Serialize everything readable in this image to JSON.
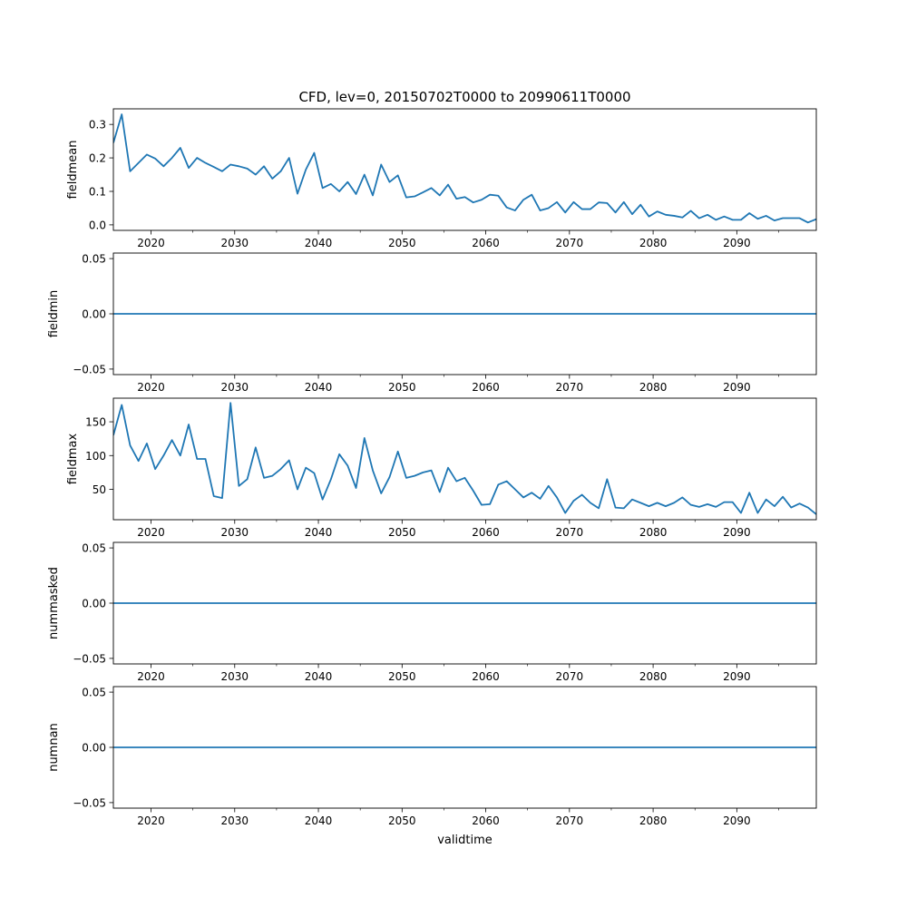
{
  "figure": {
    "title": "CFD, lev=0, 20150702T0000 to 20990611T0000",
    "xlabel": "validtime",
    "line_color": "#1f77b4"
  },
  "chart_data": [
    {
      "type": "line",
      "name": "fieldmean",
      "ylabel": "fieldmean",
      "xlim": [
        2015.5,
        2099.5
      ],
      "ylim": [
        -0.0165,
        0.3465
      ],
      "xticks": [
        2020,
        2030,
        2040,
        2050,
        2060,
        2070,
        2080,
        2090
      ],
      "xtick_labels": [
        "2020",
        "2030",
        "2040",
        "2050",
        "2060",
        "2070",
        "2080",
        "2090"
      ],
      "yticks": [
        0.0,
        0.1,
        0.2,
        0.3
      ],
      "ytick_labels": [
        "0.0",
        "0.1",
        "0.2",
        "0.3"
      ],
      "x": [
        2015.5,
        2016.5,
        2017.5,
        2018.5,
        2019.5,
        2020.5,
        2021.5,
        2022.5,
        2023.5,
        2024.5,
        2025.5,
        2026.5,
        2027.5,
        2028.5,
        2029.5,
        2030.5,
        2031.5,
        2032.5,
        2033.5,
        2034.5,
        2035.5,
        2036.5,
        2037.5,
        2038.5,
        2039.5,
        2040.5,
        2041.5,
        2042.5,
        2043.5,
        2044.5,
        2045.5,
        2046.5,
        2047.5,
        2048.5,
        2049.5,
        2050.5,
        2051.5,
        2052.5,
        2053.5,
        2054.5,
        2055.5,
        2056.5,
        2057.5,
        2058.5,
        2059.5,
        2060.5,
        2061.5,
        2062.5,
        2063.5,
        2064.5,
        2065.5,
        2066.5,
        2067.5,
        2068.5,
        2069.5,
        2070.5,
        2071.5,
        2072.5,
        2073.5,
        2074.5,
        2075.5,
        2076.5,
        2077.5,
        2078.5,
        2079.5,
        2080.5,
        2081.5,
        2082.5,
        2083.5,
        2084.5,
        2085.5,
        2086.5,
        2087.5,
        2088.5,
        2089.5,
        2090.5,
        2091.5,
        2092.5,
        2093.5,
        2094.5,
        2095.5,
        2096.5,
        2097.5,
        2098.5,
        2099.5
      ],
      "values": [
        0.245,
        0.33,
        0.16,
        0.185,
        0.21,
        0.198,
        0.175,
        0.2,
        0.23,
        0.17,
        0.2,
        0.185,
        0.173,
        0.16,
        0.18,
        0.175,
        0.168,
        0.15,
        0.175,
        0.138,
        0.16,
        0.2,
        0.093,
        0.165,
        0.215,
        0.11,
        0.122,
        0.1,
        0.128,
        0.092,
        0.15,
        0.088,
        0.18,
        0.128,
        0.148,
        0.082,
        0.085,
        0.097,
        0.11,
        0.088,
        0.12,
        0.078,
        0.083,
        0.067,
        0.075,
        0.09,
        0.087,
        0.052,
        0.043,
        0.075,
        0.09,
        0.043,
        0.05,
        0.068,
        0.037,
        0.068,
        0.047,
        0.047,
        0.067,
        0.065,
        0.037,
        0.068,
        0.032,
        0.06,
        0.025,
        0.04,
        0.03,
        0.027,
        0.022,
        0.042,
        0.02,
        0.03,
        0.015,
        0.025,
        0.015,
        0.015,
        0.035,
        0.018,
        0.027,
        0.013,
        0.02,
        0.02,
        0.02,
        0.007,
        0.017
      ]
    },
    {
      "type": "line",
      "name": "fieldmin",
      "ylabel": "fieldmin",
      "xlim": [
        2015.5,
        2099.5
      ],
      "ylim": [
        -0.055,
        0.055
      ],
      "xticks": [
        2020,
        2030,
        2040,
        2050,
        2060,
        2070,
        2080,
        2090
      ],
      "xtick_labels": [
        "2020",
        "2030",
        "2040",
        "2050",
        "2060",
        "2070",
        "2080",
        "2090"
      ],
      "yticks": [
        -0.05,
        0.0,
        0.05
      ],
      "ytick_labels": [
        "−0.05",
        "0.00",
        "0.05"
      ],
      "x": [
        2015.5,
        2099.5
      ],
      "values": [
        0,
        0
      ]
    },
    {
      "type": "line",
      "name": "fieldmax",
      "ylabel": "fieldmax",
      "xlim": [
        2015.5,
        2099.5
      ],
      "ylim": [
        5,
        185
      ],
      "xticks": [
        2020,
        2030,
        2040,
        2050,
        2060,
        2070,
        2080,
        2090
      ],
      "xtick_labels": [
        "2020",
        "2030",
        "2040",
        "2050",
        "2060",
        "2070",
        "2080",
        "2090"
      ],
      "yticks": [
        50,
        100,
        150
      ],
      "ytick_labels": [
        "50",
        "100",
        "150"
      ],
      "x": [
        2015.5,
        2016.5,
        2017.5,
        2018.5,
        2019.5,
        2020.5,
        2021.5,
        2022.5,
        2023.5,
        2024.5,
        2025.5,
        2026.5,
        2027.5,
        2028.5,
        2029.5,
        2030.5,
        2031.5,
        2032.5,
        2033.5,
        2034.5,
        2035.5,
        2036.5,
        2037.5,
        2038.5,
        2039.5,
        2040.5,
        2041.5,
        2042.5,
        2043.5,
        2044.5,
        2045.5,
        2046.5,
        2047.5,
        2048.5,
        2049.5,
        2050.5,
        2051.5,
        2052.5,
        2053.5,
        2054.5,
        2055.5,
        2056.5,
        2057.5,
        2058.5,
        2059.5,
        2060.5,
        2061.5,
        2062.5,
        2063.5,
        2064.5,
        2065.5,
        2066.5,
        2067.5,
        2068.5,
        2069.5,
        2070.5,
        2071.5,
        2072.5,
        2073.5,
        2074.5,
        2075.5,
        2076.5,
        2077.5,
        2078.5,
        2079.5,
        2080.5,
        2081.5,
        2082.5,
        2083.5,
        2084.5,
        2085.5,
        2086.5,
        2087.5,
        2088.5,
        2089.5,
        2090.5,
        2091.5,
        2092.5,
        2093.5,
        2094.5,
        2095.5,
        2096.5,
        2097.5,
        2098.5,
        2099.5
      ],
      "values": [
        130,
        175,
        115,
        92,
        118,
        80,
        100,
        123,
        100,
        146,
        95,
        95,
        40,
        37,
        178,
        55,
        65,
        112,
        67,
        70,
        80,
        93,
        50,
        82,
        74,
        35,
        65,
        102,
        85,
        52,
        126,
        78,
        44,
        68,
        106,
        67,
        70,
        75,
        78,
        46,
        82,
        62,
        67,
        48,
        27,
        28,
        57,
        62,
        50,
        38,
        45,
        36,
        55,
        38,
        15,
        33,
        42,
        30,
        22,
        65,
        23,
        22,
        35,
        30,
        25,
        30,
        25,
        30,
        38,
        27,
        24,
        28,
        24,
        31,
        31,
        15,
        45,
        15,
        35,
        25,
        39,
        23,
        29,
        23,
        13
      ]
    },
    {
      "type": "line",
      "name": "nummasked",
      "ylabel": "nummasked",
      "xlim": [
        2015.5,
        2099.5
      ],
      "ylim": [
        -0.055,
        0.055
      ],
      "xticks": [
        2020,
        2030,
        2040,
        2050,
        2060,
        2070,
        2080,
        2090
      ],
      "xtick_labels": [
        "2020",
        "2030",
        "2040",
        "2050",
        "2060",
        "2070",
        "2080",
        "2090"
      ],
      "yticks": [
        -0.05,
        0.0,
        0.05
      ],
      "ytick_labels": [
        "−0.05",
        "0.00",
        "0.05"
      ],
      "x": [
        2015.5,
        2099.5
      ],
      "values": [
        0,
        0
      ]
    },
    {
      "type": "line",
      "name": "numnan",
      "ylabel": "numnan",
      "xlim": [
        2015.5,
        2099.5
      ],
      "ylim": [
        -0.055,
        0.055
      ],
      "xticks": [
        2020,
        2030,
        2040,
        2050,
        2060,
        2070,
        2080,
        2090
      ],
      "xtick_labels": [
        "2020",
        "2030",
        "2040",
        "2050",
        "2060",
        "2070",
        "2080",
        "2090"
      ],
      "yticks": [
        -0.05,
        0.0,
        0.05
      ],
      "ytick_labels": [
        "−0.05",
        "0.00",
        "0.05"
      ],
      "x": [
        2015.5,
        2099.5
      ],
      "values": [
        0,
        0
      ]
    }
  ]
}
